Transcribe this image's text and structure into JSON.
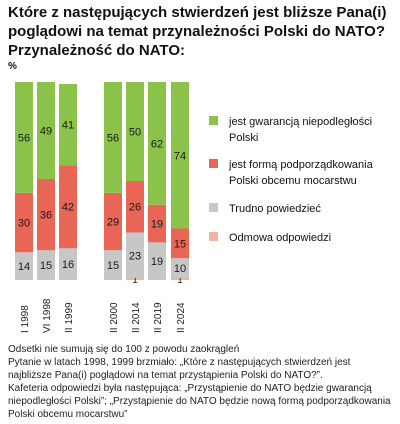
{
  "title": "Które z następujących stwierdzeń jest bliższe Pana(i) poglądowi na temat przynależności Polski do NATO? Przynależność do NATO:",
  "unit": "%",
  "notes": {
    "rounding": "Odsetki nie sumują się do 100 z powodu zaokrągleń",
    "question": "Pytanie w latach 1998, 1999 brzmiało: „Które z następujących stwierdzeń jest najbliższe Pana(i) poglądowi na temat przystąpienia Polski do NATO?”.",
    "cafeteria": "Kafeteria odpowiedzi była następująca: „Przystąpienie do NATO będzie gwarancją niepodległości Polski”; „Przystąpienie do NATO będzie nową formą podporządkowania Polski obcemu mocarstwu”"
  },
  "chart_data": {
    "type": "bar",
    "stacked": true,
    "title": "Które z następujących stwierdzeń jest bliższe Pana(i) poglądowi na temat przynależności Polski do NATO? Przynależność do NATO:",
    "ylabel": "%",
    "ylim": [
      0,
      100
    ],
    "grid": false,
    "legend_position": "right",
    "groups": [
      [
        "I 1998",
        "VI 1998",
        "II 1999"
      ],
      [
        "II 2000",
        "II 2014",
        "II 2019",
        "II 2024"
      ]
    ],
    "categories": [
      "I 1998",
      "VI 1998",
      "II 1999",
      "II 2000",
      "II 2014",
      "II 2019",
      "II 2024"
    ],
    "series": [
      {
        "name": "jest gwarancją niepodległości Polski",
        "color": "#8bc34a",
        "values": [
          56,
          49,
          41,
          56,
          50,
          62,
          74
        ]
      },
      {
        "name": "jest formą podporządkowania Polski obcemu mocarstwu",
        "color": "#e96556",
        "values": [
          30,
          36,
          42,
          29,
          26,
          19,
          15
        ]
      },
      {
        "name": "Trudno powiedzieć",
        "color": "#c7c7c7",
        "values": [
          14,
          15,
          16,
          15,
          23,
          19,
          10
        ]
      },
      {
        "name": "Odmowa odpowiedzi",
        "color": "#f4b2a6",
        "values": [
          0,
          0,
          0,
          0,
          1,
          0,
          1
        ]
      }
    ]
  }
}
